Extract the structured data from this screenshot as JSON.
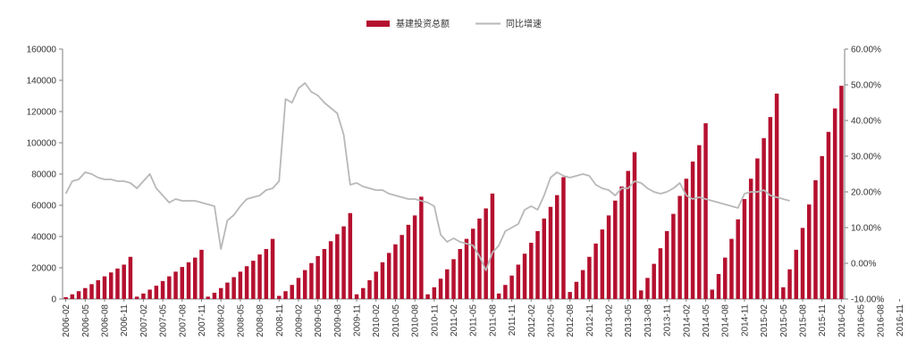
{
  "colors": {
    "bar": "#b5102f",
    "line": "#b8b8b8",
    "axis": "#7f7f7f",
    "text": "#333333"
  },
  "chart_data": {
    "type": "bar",
    "title": "",
    "xlabel": "",
    "ylabel": "",
    "legend": {
      "position": "top-center",
      "entries": [
        "基建投资总额",
        "同比增速"
      ]
    },
    "grid": false,
    "ylim": [
      0,
      160000
    ],
    "y2lim": [
      -0.1,
      0.6
    ],
    "yticks": [
      "0",
      "20000",
      "40000",
      "60000",
      "80000",
      "100000",
      "120000",
      "140000",
      "160000"
    ],
    "y2ticks": [
      "-10.00%",
      "0.00%",
      "10.00%",
      "20.00%",
      "30.00%",
      "40.00%",
      "50.00%",
      "60.00%"
    ],
    "xtick_labels": [
      "2006-02",
      "2006-05",
      "2006-08",
      "2006-11",
      "2007-02",
      "2007-05",
      "2007-08",
      "2007-11",
      "2008-02",
      "2008-05",
      "2008-08",
      "2008-11",
      "2009-02",
      "2009-05",
      "2009-08",
      "2009-11",
      "2010-02",
      "2010-05",
      "2010-08",
      "2010-11",
      "2011-02",
      "2011-05",
      "2011-08",
      "2011-11",
      "2012-02",
      "2012-05",
      "2012-08",
      "2012-11",
      "2013-02",
      "2013-05",
      "2013-08",
      "2013-11",
      "2014-02",
      "2014-05",
      "2014-08",
      "2014-11",
      "2015-02",
      "2015-05",
      "2015-08",
      "2015-11",
      "2016-02",
      "2016-05",
      "2016-08",
      "2016-11"
    ],
    "start": "2006-02",
    "series": [
      {
        "name": "基建投资总额",
        "type": "bar",
        "axis": "left",
        "values": [
          1200,
          3000,
          5000,
          7000,
          9500,
          12000,
          14500,
          17000,
          19500,
          22000,
          27000,
          1500,
          3500,
          6000,
          8500,
          11500,
          14500,
          17500,
          20500,
          23500,
          26500,
          31500,
          1500,
          4000,
          7000,
          10500,
          14000,
          17500,
          21000,
          24500,
          28500,
          32000,
          38500,
          2000,
          5000,
          9000,
          13500,
          18500,
          23000,
          27500,
          32000,
          37000,
          41500,
          46500,
          55000,
          3000,
          7000,
          12000,
          17500,
          23500,
          29500,
          35000,
          41000,
          47500,
          53500,
          65500,
          3000,
          7500,
          13000,
          19000,
          25500,
          32000,
          38500,
          45000,
          51500,
          58000,
          67500,
          3500,
          9000,
          15000,
          22000,
          29000,
          36000,
          43500,
          51500,
          59000,
          66500,
          78000,
          4500,
          11000,
          18500,
          27000,
          35500,
          44500,
          53500,
          63000,
          72000,
          82000,
          94000,
          5500,
          13500,
          22500,
          32500,
          43500,
          54500,
          66000,
          77000,
          88000,
          98500,
          112500,
          6000,
          16000,
          26500,
          38500,
          51000,
          64000,
          77000,
          90000,
          103000,
          116500,
          131500,
          7500,
          19000,
          31500,
          45500,
          60500,
          76000,
          91500,
          107000,
          122000,
          136500
        ]
      },
      {
        "name": "同比增速",
        "type": "line",
        "axis": "right",
        "values": [
          0.195,
          0.23,
          0.235,
          0.255,
          0.25,
          0.24,
          0.235,
          0.235,
          0.23,
          0.23,
          0.225,
          0.21,
          0.23,
          0.25,
          0.21,
          0.19,
          0.17,
          0.18,
          0.175,
          0.175,
          0.175,
          0.17,
          0.165,
          0.16,
          0.04,
          0.12,
          0.135,
          0.16,
          0.18,
          0.185,
          0.19,
          0.205,
          0.21,
          0.23,
          0.46,
          0.45,
          0.49,
          0.505,
          0.48,
          0.47,
          0.45,
          0.435,
          0.42,
          0.36,
          0.22,
          0.225,
          0.215,
          0.21,
          0.205,
          0.205,
          0.195,
          0.19,
          0.185,
          0.18,
          0.18,
          0.175,
          0.17,
          0.16,
          0.08,
          0.06,
          0.07,
          0.06,
          0.055,
          0.05,
          0.02,
          -0.02,
          0.03,
          0.05,
          0.09,
          0.1,
          0.11,
          0.15,
          0.16,
          0.15,
          0.19,
          0.24,
          0.255,
          0.245,
          0.24,
          0.245,
          0.25,
          0.245,
          0.22,
          0.21,
          0.205,
          0.19,
          0.21,
          0.21,
          0.23,
          0.225,
          0.21,
          0.2,
          0.195,
          0.2,
          0.21,
          0.225,
          0.19,
          0.18,
          0.185,
          0.18,
          0.175,
          0.17,
          0.165,
          0.16,
          0.155,
          0.195,
          0.2,
          0.2,
          0.205,
          0.19,
          0.185,
          0.18,
          0.175
        ]
      }
    ]
  }
}
